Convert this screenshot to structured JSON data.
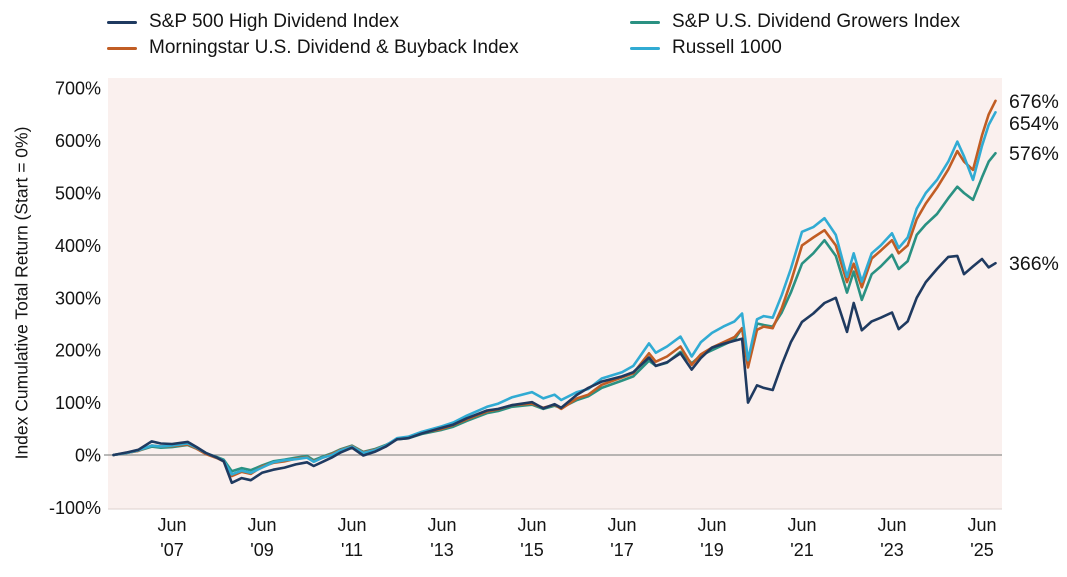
{
  "legend": {
    "items": [
      {
        "label": "S&P 500 High Dividend Index",
        "color": "#1f3a60"
      },
      {
        "label": "S&P U.S. Dividend Growers Index",
        "color": "#2a9182"
      },
      {
        "label": "Morningstar U.S. Dividend & Buyback Index",
        "color": "#c15d24"
      },
      {
        "label": "Russell 1000",
        "color": "#31abd3"
      }
    ]
  },
  "chart_data": {
    "type": "line",
    "title": "",
    "xlabel": "",
    "ylabel": "Index Cumulative Total Return (Start = 0%)",
    "ylim": [
      -100,
      700
    ],
    "grid": "no gridlines; gray baseline at 0% only",
    "legend_position": "top",
    "plot_background": "#faf0ee",
    "zero_line_color": "#8f8f8f",
    "plot_bottom_edge_color": "#ddd2cf",
    "y_ticks": [
      {
        "value": 700,
        "label": "700%"
      },
      {
        "value": 600,
        "label": "600%"
      },
      {
        "value": 500,
        "label": "500%"
      },
      {
        "value": 400,
        "label": "400%"
      },
      {
        "value": 300,
        "label": "300%"
      },
      {
        "value": 200,
        "label": "200%"
      },
      {
        "value": 100,
        "label": "100%"
      },
      {
        "value": 0,
        "label": "0%"
      },
      {
        "value": -100,
        "label": "-100%"
      }
    ],
    "x_ticks": [
      {
        "t": 2007.45,
        "month": "Jun",
        "year": "'07"
      },
      {
        "t": 2009.45,
        "month": "Jun",
        "year": "'09"
      },
      {
        "t": 2011.45,
        "month": "Jun",
        "year": "'11"
      },
      {
        "t": 2013.45,
        "month": "Jun",
        "year": "'13"
      },
      {
        "t": 2015.45,
        "month": "Jun",
        "year": "'15"
      },
      {
        "t": 2017.45,
        "month": "Jun",
        "year": "'17"
      },
      {
        "t": 2019.45,
        "month": "Jun",
        "year": "'19"
      },
      {
        "t": 2021.45,
        "month": "Jun",
        "year": "'21"
      },
      {
        "t": 2023.45,
        "month": "Jun",
        "year": "'23"
      },
      {
        "t": 2025.45,
        "month": "Jun",
        "year": "'25"
      }
    ],
    "x_start": 2006.15,
    "x_end": 2025.75,
    "x": [
      2006.15,
      2006.45,
      2006.7,
      2007.0,
      2007.2,
      2007.45,
      2007.8,
      2008.0,
      2008.2,
      2008.45,
      2008.6,
      2008.78,
      2009.0,
      2009.2,
      2009.45,
      2009.7,
      2009.95,
      2010.2,
      2010.45,
      2010.6,
      2010.8,
      2011.0,
      2011.2,
      2011.45,
      2011.7,
      2011.95,
      2012.2,
      2012.45,
      2012.7,
      2013.0,
      2013.45,
      2013.7,
      2014.0,
      2014.45,
      2014.7,
      2015.0,
      2015.45,
      2015.7,
      2015.95,
      2016.1,
      2016.45,
      2016.7,
      2017.0,
      2017.45,
      2017.7,
      2018.05,
      2018.2,
      2018.45,
      2018.75,
      2019.0,
      2019.2,
      2019.45,
      2019.7,
      2019.95,
      2020.12,
      2020.25,
      2020.45,
      2020.6,
      2020.8,
      2021.0,
      2021.2,
      2021.45,
      2021.7,
      2021.95,
      2022.2,
      2022.45,
      2022.6,
      2022.78,
      2023.0,
      2023.2,
      2023.45,
      2023.6,
      2023.8,
      2024.0,
      2024.2,
      2024.45,
      2024.7,
      2024.9,
      2025.05,
      2025.25,
      2025.45,
      2025.6,
      2025.75
    ],
    "series": [
      {
        "name": "S&P U.S. Dividend Growers Index",
        "color": "#2a9182",
        "end_value": 576,
        "end_label": "576%",
        "values": [
          0,
          4,
          8,
          16,
          14,
          15,
          19,
          12,
          3,
          -4,
          -9,
          -31,
          -25,
          -29,
          -20,
          -12,
          -9,
          -5,
          -2,
          -10,
          -3,
          3,
          11,
          18,
          6,
          11,
          19,
          30,
          32,
          40,
          48,
          54,
          65,
          80,
          84,
          92,
          96,
          88,
          94,
          90,
          105,
          112,
          128,
          142,
          150,
          180,
          170,
          176,
          197,
          175,
          190,
          200,
          210,
          220,
          242,
          172,
          251,
          248,
          245,
          272,
          310,
          365,
          385,
          410,
          380,
          310,
          350,
          296,
          345,
          360,
          382,
          355,
          370,
          420,
          440,
          460,
          490,
          512,
          500,
          487,
          530,
          560,
          576
        ]
      },
      {
        "name": "Morningstar U.S. Dividend & Buyback Index",
        "color": "#c15d24",
        "end_value": 676,
        "end_label": "676%",
        "values": [
          0,
          4,
          8,
          18,
          16,
          17,
          20,
          12,
          2,
          -6,
          -12,
          -40,
          -32,
          -36,
          -22,
          -15,
          -12,
          -7,
          -4,
          -12,
          -5,
          2,
          10,
          17,
          5,
          10,
          18,
          31,
          33,
          42,
          50,
          57,
          68,
          83,
          87,
          95,
          98,
          90,
          96,
          88,
          108,
          115,
          134,
          148,
          156,
          194,
          178,
          188,
          207,
          172,
          192,
          205,
          215,
          225,
          242,
          167,
          239,
          245,
          242,
          280,
          330,
          400,
          415,
          429,
          400,
          330,
          365,
          320,
          375,
          390,
          410,
          385,
          400,
          450,
          480,
          510,
          545,
          580,
          560,
          544,
          610,
          650,
          676
        ]
      },
      {
        "name": "Russell 1000",
        "color": "#31abd3",
        "end_value": 654,
        "end_label": "654%",
        "values": [
          0,
          4,
          9,
          18,
          16,
          18,
          22,
          14,
          4,
          -5,
          -11,
          -37,
          -30,
          -34,
          -24,
          -14,
          -10,
          -8,
          -5,
          -13,
          -5,
          0,
          9,
          16,
          4,
          9,
          18,
          32,
          35,
          44,
          55,
          62,
          75,
          92,
          98,
          110,
          120,
          108,
          115,
          105,
          120,
          126,
          146,
          158,
          170,
          213,
          195,
          207,
          226,
          188,
          215,
          233,
          245,
          255,
          270,
          181,
          259,
          265,
          262,
          305,
          355,
          426,
          435,
          452,
          420,
          340,
          385,
          331,
          385,
          400,
          423,
          395,
          415,
          470,
          500,
          525,
          560,
          598,
          570,
          525,
          590,
          630,
          654
        ]
      },
      {
        "name": "S&P 500 High Dividend Index",
        "color": "#1f3a60",
        "end_value": 366,
        "end_label": "366%",
        "values": [
          0,
          5,
          10,
          26,
          22,
          21,
          25,
          15,
          4,
          -5,
          -12,
          -53,
          -44,
          -48,
          -34,
          -28,
          -24,
          -18,
          -14,
          -21,
          -13,
          -5,
          5,
          14,
          -1,
          6,
          16,
          30,
          32,
          41,
          52,
          58,
          70,
          85,
          88,
          95,
          101,
          89,
          97,
          90,
          115,
          128,
          140,
          150,
          158,
          186,
          170,
          177,
          194,
          163,
          185,
          205,
          212,
          218,
          222,
          100,
          133,
          128,
          124,
          172,
          215,
          254,
          270,
          290,
          300,
          235,
          290,
          238,
          255,
          262,
          272,
          240,
          255,
          300,
          330,
          355,
          378,
          380,
          345,
          360,
          374,
          358,
          366
        ]
      }
    ]
  }
}
